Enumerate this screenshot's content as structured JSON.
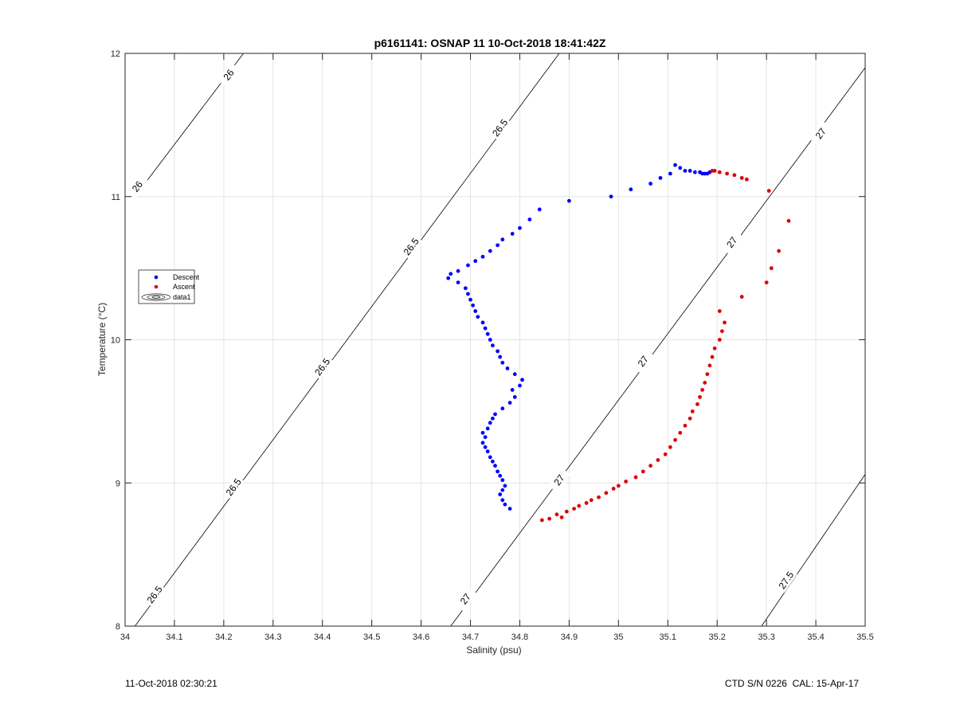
{
  "figure": {
    "footer_left": "11-Oct-2018 02:30:21",
    "footer_right": "CTD S/N 0226  CAL: 15-Apr-17"
  },
  "chart_data": {
    "type": "scatter",
    "title": "p6161141: OSNAP 11 10-Oct-2018 18:41:42Z",
    "xlabel": "Salinity (psu)",
    "ylabel": "Temperature (°C)",
    "xlim": [
      34,
      35.5
    ],
    "ylim": [
      8,
      12
    ],
    "xticks": [
      "34",
      "34.1",
      "34.2",
      "34.3",
      "34.4",
      "34.5",
      "34.6",
      "34.7",
      "34.8",
      "34.9",
      "35",
      "35.1",
      "35.2",
      "35.3",
      "35.4",
      "35.5"
    ],
    "yticks": [
      "8",
      "9",
      "10",
      "11",
      "12"
    ],
    "grid": true,
    "legend": {
      "location": "left",
      "entries": [
        "Descent",
        "Ascent",
        "data1"
      ]
    },
    "series": [
      {
        "name": "Descent",
        "color": "#0000ff",
        "marker": "dot",
        "points": [
          [
            34.78,
            8.82
          ],
          [
            34.77,
            8.85
          ],
          [
            34.765,
            8.88
          ],
          [
            34.76,
            8.92
          ],
          [
            34.765,
            8.95
          ],
          [
            34.77,
            8.98
          ],
          [
            34.765,
            9.02
          ],
          [
            34.76,
            9.05
          ],
          [
            34.755,
            9.08
          ],
          [
            34.75,
            9.12
          ],
          [
            34.745,
            9.15
          ],
          [
            34.74,
            9.18
          ],
          [
            34.735,
            9.22
          ],
          [
            34.73,
            9.25
          ],
          [
            34.725,
            9.28
          ],
          [
            34.73,
            9.32
          ],
          [
            34.725,
            9.35
          ],
          [
            34.735,
            9.38
          ],
          [
            34.74,
            9.42
          ],
          [
            34.745,
            9.45
          ],
          [
            34.75,
            9.48
          ],
          [
            34.765,
            9.52
          ],
          [
            34.78,
            9.56
          ],
          [
            34.79,
            9.6
          ],
          [
            34.785,
            9.65
          ],
          [
            34.8,
            9.68
          ],
          [
            34.805,
            9.72
          ],
          [
            34.79,
            9.76
          ],
          [
            34.775,
            9.8
          ],
          [
            34.765,
            9.84
          ],
          [
            34.76,
            9.88
          ],
          [
            34.755,
            9.92
          ],
          [
            34.745,
            9.96
          ],
          [
            34.74,
            10.0
          ],
          [
            34.735,
            10.04
          ],
          [
            34.73,
            10.08
          ],
          [
            34.725,
            10.12
          ],
          [
            34.715,
            10.16
          ],
          [
            34.71,
            10.2
          ],
          [
            34.705,
            10.24
          ],
          [
            34.7,
            10.28
          ],
          [
            34.695,
            10.32
          ],
          [
            34.69,
            10.36
          ],
          [
            34.675,
            10.4
          ],
          [
            34.655,
            10.43
          ],
          [
            34.66,
            10.46
          ],
          [
            34.675,
            10.48
          ],
          [
            34.695,
            10.52
          ],
          [
            34.71,
            10.55
          ],
          [
            34.725,
            10.58
          ],
          [
            34.74,
            10.62
          ],
          [
            34.755,
            10.66
          ],
          [
            34.765,
            10.7
          ],
          [
            34.785,
            10.74
          ],
          [
            34.8,
            10.78
          ],
          [
            34.82,
            10.84
          ],
          [
            34.84,
            10.91
          ],
          [
            34.9,
            10.97
          ],
          [
            34.985,
            11.0
          ],
          [
            35.025,
            11.05
          ],
          [
            35.065,
            11.09
          ],
          [
            35.085,
            11.13
          ],
          [
            35.105,
            11.16
          ],
          [
            35.115,
            11.22
          ],
          [
            35.125,
            11.2
          ],
          [
            35.135,
            11.18
          ],
          [
            35.145,
            11.18
          ],
          [
            35.155,
            11.17
          ],
          [
            35.165,
            11.17
          ],
          [
            35.17,
            11.16
          ],
          [
            35.175,
            11.16
          ],
          [
            35.18,
            11.16
          ],
          [
            35.185,
            11.17
          ]
        ]
      },
      {
        "name": "Ascent",
        "color": "#e00000",
        "marker": "dot",
        "points": [
          [
            34.845,
            8.74
          ],
          [
            34.86,
            8.75
          ],
          [
            34.875,
            8.78
          ],
          [
            34.885,
            8.76
          ],
          [
            34.895,
            8.8
          ],
          [
            34.91,
            8.82
          ],
          [
            34.92,
            8.84
          ],
          [
            34.935,
            8.86
          ],
          [
            34.945,
            8.88
          ],
          [
            34.96,
            8.9
          ],
          [
            34.975,
            8.93
          ],
          [
            34.99,
            8.96
          ],
          [
            35.0,
            8.98
          ],
          [
            35.015,
            9.01
          ],
          [
            35.035,
            9.04
          ],
          [
            35.05,
            9.08
          ],
          [
            35.065,
            9.12
          ],
          [
            35.08,
            9.16
          ],
          [
            35.095,
            9.2
          ],
          [
            35.105,
            9.25
          ],
          [
            35.115,
            9.3
          ],
          [
            35.125,
            9.35
          ],
          [
            35.135,
            9.4
          ],
          [
            35.145,
            9.45
          ],
          [
            35.15,
            9.5
          ],
          [
            35.16,
            9.55
          ],
          [
            35.165,
            9.6
          ],
          [
            35.17,
            9.65
          ],
          [
            35.175,
            9.7
          ],
          [
            35.18,
            9.76
          ],
          [
            35.185,
            9.82
          ],
          [
            35.19,
            9.88
          ],
          [
            35.195,
            9.94
          ],
          [
            35.205,
            10.0
          ],
          [
            35.21,
            10.06
          ],
          [
            35.215,
            10.12
          ],
          [
            35.205,
            10.2
          ],
          [
            35.25,
            10.3
          ],
          [
            35.3,
            10.4
          ],
          [
            35.31,
            10.5
          ],
          [
            35.325,
            10.62
          ],
          [
            35.345,
            10.83
          ],
          [
            35.305,
            11.04
          ],
          [
            35.26,
            11.12
          ],
          [
            35.25,
            11.13
          ],
          [
            35.235,
            11.15
          ],
          [
            35.22,
            11.16
          ],
          [
            35.205,
            11.17
          ],
          [
            35.195,
            11.18
          ],
          [
            35.19,
            11.18
          ]
        ]
      }
    ],
    "contours": [
      {
        "level": "26",
        "lines": [
          [
            [
              34.02,
              11.0
            ],
            [
              34.24,
              12.0
            ]
          ]
        ],
        "labels": [
          [
            34.025,
            11.07
          ],
          [
            34.21,
            11.85
          ]
        ]
      },
      {
        "level": "26.5",
        "lines": [
          [
            [
              34.02,
              8.0
            ],
            [
              34.88,
              12.0
            ]
          ]
        ],
        "labels": [
          [
            34.06,
            8.22
          ],
          [
            34.22,
            8.97
          ],
          [
            34.4,
            9.81
          ],
          [
            34.58,
            10.65
          ],
          [
            34.76,
            11.48
          ]
        ]
      },
      {
        "level": "27",
        "lines": [
          [
            [
              34.66,
              8.0
            ],
            [
              35.5,
              11.9
            ]
          ]
        ],
        "labels": [
          [
            34.69,
            8.19
          ],
          [
            34.88,
            9.02
          ],
          [
            35.05,
            9.85
          ],
          [
            35.23,
            10.68
          ],
          [
            35.41,
            11.44
          ]
        ]
      },
      {
        "level": "27.5",
        "lines": [
          [
            [
              35.29,
              8.0
            ],
            [
              35.5,
              9.06
            ]
          ]
        ],
        "labels": [
          [
            35.34,
            8.32
          ]
        ]
      }
    ]
  }
}
